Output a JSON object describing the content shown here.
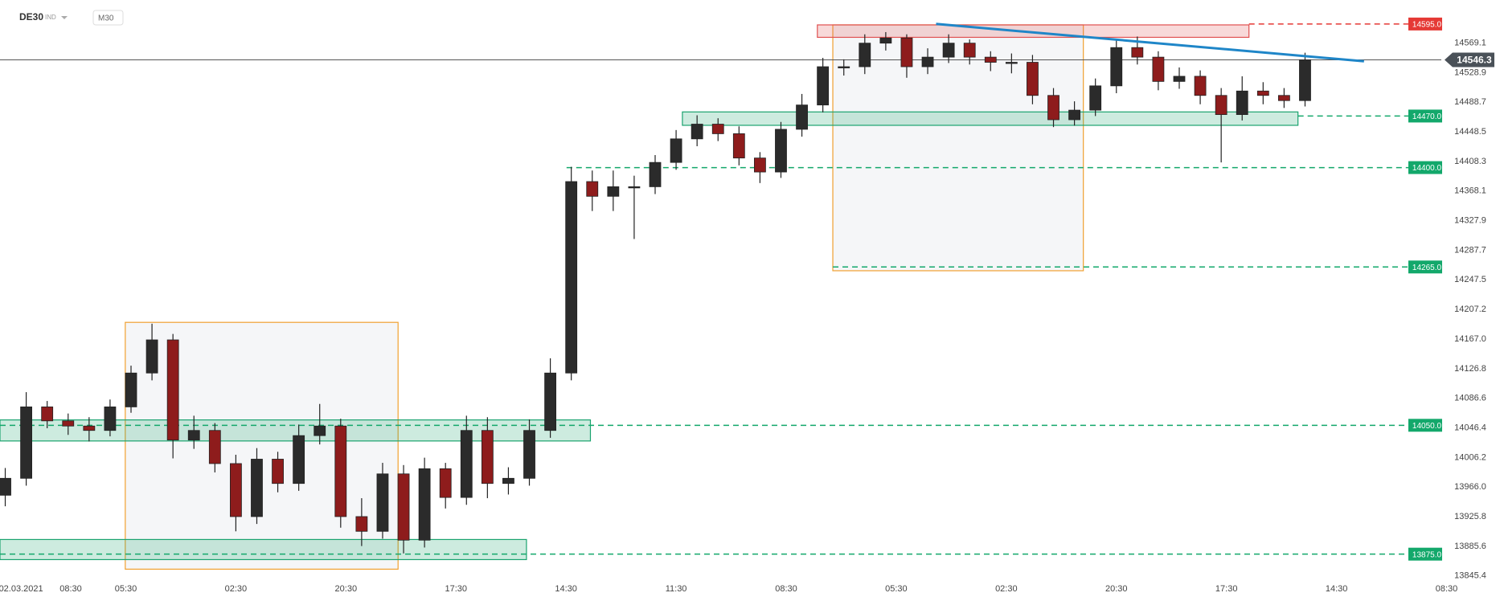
{
  "chart_data": {
    "type": "candlestick",
    "symbol": "DE30",
    "market": "IND",
    "timeframe": "M30",
    "x": [
      2,
      10,
      18,
      26,
      34,
      42,
      50,
      58,
      66,
      74,
      82,
      90,
      98,
      106,
      114,
      122,
      130,
      138,
      146,
      154,
      162,
      170,
      178,
      186,
      194,
      202,
      210,
      218,
      226,
      234,
      242,
      250,
      258,
      266,
      274,
      282,
      290,
      298,
      306,
      314,
      322,
      330,
      338,
      346,
      354,
      362,
      370,
      378,
      386,
      394,
      402,
      410,
      418,
      426,
      434,
      442,
      450,
      458,
      466,
      474,
      482,
      490,
      498
    ],
    "open": [
      13955,
      13978,
      14075,
      14056,
      14049,
      14043,
      14075,
      14121,
      14166,
      14030,
      14043,
      13998,
      13926,
      14004,
      13971,
      14036,
      14049,
      13926,
      13906,
      13984,
      13894,
      13991,
      13952,
      14043,
      13971,
      13978,
      14043,
      14121,
      14381,
      14361,
      14374,
      14374,
      14407,
      14439,
      14459,
      14446,
      14413,
      14394,
      14452,
      14485,
      14537,
      14537,
      14569,
      14576,
      14537,
      14550,
      14569,
      14550,
      14543,
      14543,
      14498,
      14465,
      14478,
      14511,
      14563,
      14550,
      14517,
      14524,
      14498,
      14472,
      14504,
      14498,
      14491
    ],
    "high": [
      13992,
      14095,
      14083,
      14066,
      14061,
      14085,
      14131,
      14188,
      14174,
      14063,
      14053,
      14010,
      14019,
      14014,
      14051,
      14079,
      14059,
      13951,
      13999,
      13996,
      14006,
      13999,
      14063,
      14061,
      13993,
      14058,
      14141,
      14401,
      14396,
      14396,
      14389,
      14417,
      14451,
      14471,
      14467,
      14456,
      14421,
      14462,
      14500,
      14549,
      14547,
      14581,
      14584,
      14581,
      14562,
      14581,
      14574,
      14558,
      14555,
      14553,
      14508,
      14490,
      14521,
      14575,
      14578,
      14558,
      14536,
      14532,
      14508,
      14524,
      14516,
      14508,
      14556
    ],
    "low": [
      13940,
      13968,
      14046,
      14037,
      14028,
      14035,
      14067,
      14111,
      14005,
      14018,
      13986,
      13906,
      13916,
      13959,
      13961,
      14024,
      13911,
      13886,
      13896,
      13876,
      13884,
      13937,
      13942,
      13951,
      13956,
      13968,
      14033,
      14111,
      14341,
      14341,
      14303,
      14364,
      14397,
      14429,
      14436,
      14403,
      14379,
      14386,
      14442,
      14475,
      14525,
      14527,
      14559,
      14522,
      14527,
      14542,
      14540,
      14531,
      14528,
      14486,
      14455,
      14457,
      14470,
      14501,
      14540,
      14505,
      14507,
      14486,
      14407,
      14464,
      14486,
      14481,
      14483
    ],
    "close": [
      13978,
      14075,
      14056,
      14049,
      14043,
      14075,
      14121,
      14166,
      14030,
      14043,
      13998,
      13926,
      14004,
      13971,
      14036,
      14049,
      13926,
      13906,
      13984,
      13894,
      13991,
      13952,
      14043,
      13971,
      13978,
      14043,
      14121,
      14381,
      14361,
      14374,
      14374,
      14407,
      14439,
      14459,
      14446,
      14413,
      14394,
      14452,
      14485,
      14537,
      14537,
      14569,
      14576,
      14537,
      14550,
      14569,
      14550,
      14543,
      14543,
      14498,
      14465,
      14478,
      14511,
      14563,
      14550,
      14517,
      14524,
      14498,
      14472,
      14504,
      14498,
      14491,
      14546.3
    ],
    "up_color": "#2b2b2b",
    "down_color": "#8e1c1c",
    "xlim": [
      0,
      550
    ],
    "xticks": [
      {
        "value": 8,
        "label": "02.03.2021"
      },
      {
        "value": 27,
        "label": "08:30"
      },
      {
        "value": 48,
        "label": "05:30"
      },
      {
        "value": 90,
        "label": "02:30"
      },
      {
        "value": 132,
        "label": "20:30"
      },
      {
        "value": 174,
        "label": "17:30"
      },
      {
        "value": 216,
        "label": "14:30"
      },
      {
        "value": 258,
        "label": "11:30"
      },
      {
        "value": 300,
        "label": "08:30"
      },
      {
        "value": 342,
        "label": "05:30"
      },
      {
        "value": 384,
        "label": "02:30"
      },
      {
        "value": 426,
        "label": "20:30"
      },
      {
        "value": 468,
        "label": "17:30"
      },
      {
        "value": 510,
        "label": "14:30"
      },
      {
        "value": 552,
        "label": "08:30"
      }
    ],
    "ylim": [
      13844.1,
      14627.6
    ],
    "yticks": [
      14569.1,
      14528.9,
      14488.7,
      14448.5,
      14408.3,
      14368.1,
      14327.9,
      14287.7,
      14247.5,
      14207.2,
      {
        "value": 14167,
        "label": "14167.0"
      },
      14126.8,
      14086.6,
      14046.4,
      14006.2,
      {
        "value": 13966,
        "label": "13966.0"
      },
      13925.8,
      13885.6,
      13845.4
    ],
    "levels": [
      {
        "value": 14595,
        "label": "14595.0",
        "color": "#e53935",
        "from": 476.6
      },
      {
        "value": 14470,
        "label": "14470.0",
        "color": "#13a86b",
        "from": 495.3
      },
      {
        "value": 14400,
        "label": "14400.0",
        "color": "#13a86b",
        "from": 216.2
      },
      {
        "value": 14265,
        "label": "14265.0",
        "color": "#13a86b",
        "from": 317.8
      },
      {
        "value": 14050,
        "label": "14050.0",
        "color": "#13a86b",
        "from": 0
      },
      {
        "value": 13875,
        "label": "13875.0",
        "color": "#13a86b",
        "from": 0
      }
    ],
    "zones": [
      {
        "x0": 47.8,
        "x1": 151.9,
        "y0": 13854.6,
        "y1": 14189.8,
        "color": "#f0a030"
      },
      {
        "x0": 317.8,
        "x1": 413.4,
        "y0": 14259.9,
        "y1": 14593.8,
        "color": "#f0a030"
      },
      {
        "x0": 311.9,
        "x1": 476.6,
        "y0": 14576.9,
        "y1": 14593.8,
        "color": "#e05050"
      },
      {
        "x0": 260.4,
        "x1": 495.3,
        "y0": 14457.4,
        "y1": 14475.6,
        "color": "#1aa36f"
      },
      {
        "x0": 0,
        "x1": 225.3,
        "y0": 14028.7,
        "y1": 14057.3,
        "color": "#1aa36f"
      },
      {
        "x0": 0,
        "x1": 200.9,
        "y0": 13867.6,
        "y1": 13894.9,
        "color": "#1aa36f"
      }
    ],
    "trendline": {
      "x": [
        357.2,
        520.5
      ],
      "y": [
        14595.1,
        14544.4
      ],
      "color": "#1f86c8"
    },
    "last_price": 14546.3
  }
}
